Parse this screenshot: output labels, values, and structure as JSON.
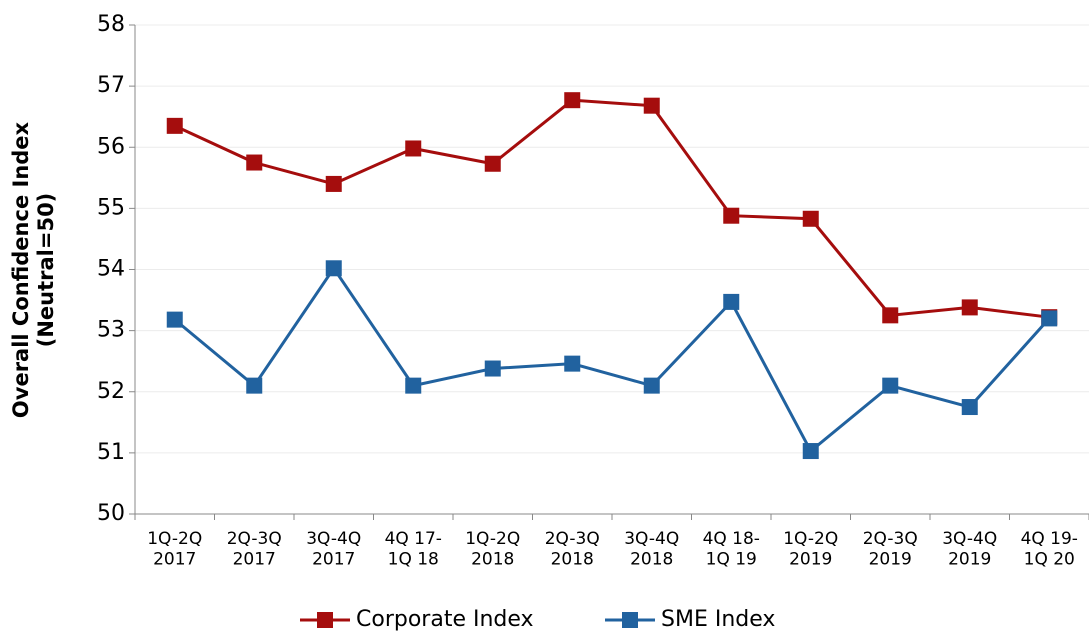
{
  "chart_data": {
    "type": "line",
    "y_label": "Overall Confidence Index\n(Neutral=50)",
    "categories": [
      "1Q-2Q\n2017",
      "2Q-3Q\n2017",
      "3Q-4Q\n2017",
      "4Q 17-\n1Q 18",
      "1Q-2Q\n2018",
      "2Q-3Q\n2018",
      "3Q-4Q\n2018",
      "4Q 18-\n1Q 19",
      "1Q-2Q\n2019",
      "2Q-3Q\n2019",
      "3Q-4Q\n2019",
      "4Q 19-\n1Q 20"
    ],
    "series": [
      {
        "name": "Corporate Index",
        "color": "#a50d0d",
        "values": [
          56.35,
          55.75,
          55.4,
          55.98,
          55.73,
          56.77,
          56.68,
          54.88,
          54.83,
          53.25,
          53.38,
          53.22
        ]
      },
      {
        "name": "SME Index",
        "color": "#21629f",
        "values": [
          53.18,
          52.1,
          54.02,
          52.1,
          52.38,
          52.46,
          52.1,
          53.47,
          51.03,
          52.1,
          51.75,
          53.2
        ]
      }
    ],
    "ylim": [
      50,
      58
    ],
    "yticks": [
      50,
      51,
      52,
      53,
      54,
      55,
      56,
      57,
      58
    ],
    "grid": true
  }
}
